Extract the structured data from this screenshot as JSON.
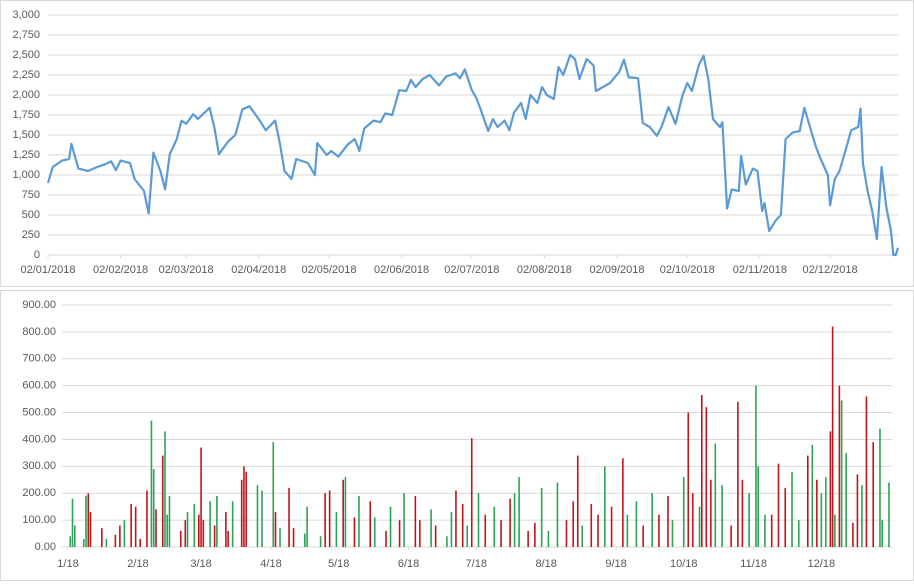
{
  "chart_data": [
    {
      "type": "line",
      "color": "#5b9bd5",
      "grid": true,
      "x": [
        "2018-01-02",
        "2018-01-04",
        "2018-01-08",
        "2018-01-11",
        "2018-01-12",
        "2018-01-15",
        "2018-01-19",
        "2018-01-23",
        "2018-01-26",
        "2018-01-29",
        "2018-01-31",
        "2018-02-02",
        "2018-02-06",
        "2018-02-08",
        "2018-02-12",
        "2018-02-14",
        "2018-02-16",
        "2018-02-19",
        "2018-02-21",
        "2018-02-23",
        "2018-02-26",
        "2018-02-28",
        "2018-03-02",
        "2018-03-05",
        "2018-03-07",
        "2018-03-12",
        "2018-03-14",
        "2018-03-16",
        "2018-03-20",
        "2018-03-23",
        "2018-03-26",
        "2018-03-29",
        "2018-04-02",
        "2018-04-05",
        "2018-04-09",
        "2018-04-11",
        "2018-04-13",
        "2018-04-16",
        "2018-04-18",
        "2018-04-23",
        "2018-04-26",
        "2018-04-27",
        "2018-05-01",
        "2018-05-03",
        "2018-05-06",
        "2018-05-10",
        "2018-05-13",
        "2018-05-15",
        "2018-05-17",
        "2018-05-21",
        "2018-05-24",
        "2018-05-26",
        "2018-05-29",
        "2018-06-01",
        "2018-06-04",
        "2018-06-06",
        "2018-06-08",
        "2018-06-11",
        "2018-06-14",
        "2018-06-18",
        "2018-06-21",
        "2018-06-25",
        "2018-06-27",
        "2018-06-29",
        "2018-07-02",
        "2018-07-04",
        "2018-07-06",
        "2018-07-09",
        "2018-07-11",
        "2018-07-13",
        "2018-07-16",
        "2018-07-18",
        "2018-07-20",
        "2018-07-23",
        "2018-07-25",
        "2018-07-27",
        "2018-07-30",
        "2018-08-01",
        "2018-08-03",
        "2018-08-06",
        "2018-08-08",
        "2018-08-10",
        "2018-08-13",
        "2018-08-15",
        "2018-08-17",
        "2018-08-20",
        "2018-08-23",
        "2018-08-24",
        "2018-08-27",
        "2018-08-30",
        "2018-09-03",
        "2018-09-05",
        "2018-09-07",
        "2018-09-11",
        "2018-09-13",
        "2018-09-16",
        "2018-09-19",
        "2018-09-21",
        "2018-09-24",
        "2018-09-27",
        "2018-09-30",
        "2018-10-02",
        "2018-10-04",
        "2018-10-07",
        "2018-10-09",
        "2018-10-11",
        "2018-10-13",
        "2018-10-16",
        "2018-10-17",
        "2018-10-19",
        "2018-10-21",
        "2018-10-24",
        "2018-10-25",
        "2018-10-27",
        "2018-10-30",
        "2018-11-01",
        "2018-11-03",
        "2018-11-04",
        "2018-11-06",
        "2018-11-09",
        "2018-11-11",
        "2018-11-13",
        "2018-11-16",
        "2018-11-19",
        "2018-11-21",
        "2018-11-24",
        "2018-11-26",
        "2018-11-28",
        "2018-12-01",
        "2018-12-02",
        "2018-12-04",
        "2018-12-06",
        "2018-12-09",
        "2018-12-11",
        "2018-12-14",
        "2018-12-15",
        "2018-12-16",
        "2018-12-18",
        "2018-12-20",
        "2018-12-22",
        "2018-12-24",
        "2018-12-26",
        "2018-12-28",
        "2018-12-29",
        "2018-12-30",
        "2018-12-31"
      ],
      "values": [
        900,
        1100,
        1180,
        1200,
        1390,
        1080,
        1050,
        1100,
        1130,
        1170,
        1060,
        1180,
        1150,
        950,
        800,
        520,
        1280,
        1050,
        820,
        1260,
        1450,
        1680,
        1640,
        1760,
        1700,
        1840,
        1600,
        1260,
        1420,
        1500,
        1820,
        1860,
        1700,
        1560,
        1680,
        1400,
        1050,
        950,
        1200,
        1150,
        1000,
        1400,
        1250,
        1300,
        1230,
        1380,
        1450,
        1300,
        1580,
        1680,
        1660,
        1770,
        1750,
        2060,
        2050,
        2190,
        2100,
        2200,
        2250,
        2120,
        2230,
        2270,
        2210,
        2320,
        2060,
        1960,
        1800,
        1550,
        1700,
        1600,
        1680,
        1560,
        1780,
        1900,
        1700,
        2000,
        1900,
        2100,
        2000,
        1950,
        2350,
        2250,
        2500,
        2450,
        2200,
        2450,
        2370,
        2050,
        2100,
        2150,
        2290,
        2440,
        2220,
        2210,
        1650,
        1600,
        1490,
        1600,
        1850,
        1640,
        2000,
        2150,
        2050,
        2380,
        2490,
        2200,
        1700,
        1600,
        1660,
        580,
        820,
        800,
        1240,
        880,
        1080,
        1050,
        550,
        650,
        300,
        440,
        500,
        1450,
        1530,
        1550,
        1840,
        1540,
        1350,
        1200,
        1000,
        620,
        950,
        1050,
        1350,
        1560,
        1600,
        1830,
        1150,
        800,
        550,
        200,
        1100,
        600,
        300,
        0,
        0,
        90
      ],
      "xlim": [
        "2018-01-02",
        "2018-12-31"
      ],
      "xticks": [
        {
          "value": "2018-01-02",
          "label": "02/01/2018"
        },
        {
          "value": "2018-02-02",
          "label": "02/02/2018"
        },
        {
          "value": "2018-03-02",
          "label": "02/03/2018"
        },
        {
          "value": "2018-04-02",
          "label": "02/04/2018"
        },
        {
          "value": "2018-05-02",
          "label": "02/05/2018"
        },
        {
          "value": "2018-06-02",
          "label": "02/06/2018"
        },
        {
          "value": "2018-07-02",
          "label": "02/07/2018"
        },
        {
          "value": "2018-08-02",
          "label": "02/08/2018"
        },
        {
          "value": "2018-09-02",
          "label": "02/09/2018"
        },
        {
          "value": "2018-10-02",
          "label": "02/10/2018"
        },
        {
          "value": "2018-11-02",
          "label": "02/11/2018"
        },
        {
          "value": "2018-12-02",
          "label": "02/12/2018"
        }
      ],
      "ylim": [
        0,
        3000
      ],
      "yticks": [
        0,
        250,
        500,
        750,
        {
          "value": 1000,
          "label": "1,000"
        },
        {
          "value": 1250,
          "label": "1,250"
        },
        {
          "value": 1500,
          "label": "1,500"
        },
        {
          "value": 1750,
          "label": "1,750"
        },
        {
          "value": 2000,
          "label": "2,000"
        },
        {
          "value": 2250,
          "label": "2,250"
        },
        {
          "value": 2500,
          "label": "2,500"
        },
        {
          "value": 2750,
          "label": "2,750"
        },
        {
          "value": 3000,
          "label": "3,000"
        }
      ]
    },
    {
      "type": "bar",
      "grid": true,
      "x": [
        "2018-01-02",
        "2018-01-03",
        "2018-01-04",
        "2018-01-08",
        "2018-01-09",
        "2018-01-10",
        "2018-01-11",
        "2018-01-16",
        "2018-01-18",
        "2018-01-22",
        "2018-01-24",
        "2018-01-26",
        "2018-01-29",
        "2018-01-31",
        "2018-02-02",
        "2018-02-05",
        "2018-02-07",
        "2018-02-08",
        "2018-02-09",
        "2018-02-12",
        "2018-02-13",
        "2018-02-14",
        "2018-02-15",
        "2018-02-20",
        "2018-02-22",
        "2018-02-23",
        "2018-02-26",
        "2018-02-28",
        "2018-03-01",
        "2018-03-02",
        "2018-03-05",
        "2018-03-07",
        "2018-03-08",
        "2018-03-12",
        "2018-03-13",
        "2018-03-15",
        "2018-03-19",
        "2018-03-20",
        "2018-03-21",
        "2018-03-26",
        "2018-03-28",
        "2018-04-02",
        "2018-04-03",
        "2018-04-05",
        "2018-04-09",
        "2018-04-11",
        "2018-04-16",
        "2018-04-17",
        "2018-04-23",
        "2018-04-25",
        "2018-04-27",
        "2018-04-30",
        "2018-05-03",
        "2018-05-04",
        "2018-05-08",
        "2018-05-10",
        "2018-05-15",
        "2018-05-17",
        "2018-05-22",
        "2018-05-24",
        "2018-05-28",
        "2018-05-30",
        "2018-06-04",
        "2018-06-06",
        "2018-06-11",
        "2018-06-13",
        "2018-06-18",
        "2018-06-20",
        "2018-06-22",
        "2018-06-25",
        "2018-06-27",
        "2018-06-29",
        "2018-07-02",
        "2018-07-05",
        "2018-07-09",
        "2018-07-12",
        "2018-07-16",
        "2018-07-18",
        "2018-07-20",
        "2018-07-24",
        "2018-07-27",
        "2018-07-30",
        "2018-08-02",
        "2018-08-06",
        "2018-08-10",
        "2018-08-13",
        "2018-08-15",
        "2018-08-17",
        "2018-08-21",
        "2018-08-24",
        "2018-08-27",
        "2018-08-30",
        "2018-09-04",
        "2018-09-06",
        "2018-09-10",
        "2018-09-13",
        "2018-09-17",
        "2018-09-20",
        "2018-09-24",
        "2018-09-26",
        "2018-10-01",
        "2018-10-03",
        "2018-10-05",
        "2018-10-08",
        "2018-10-09",
        "2018-10-11",
        "2018-10-13",
        "2018-10-15",
        "2018-10-18",
        "2018-10-22",
        "2018-10-25",
        "2018-10-27",
        "2018-10-30",
        "2018-11-02",
        "2018-11-03",
        "2018-11-06",
        "2018-11-09",
        "2018-11-12",
        "2018-11-15",
        "2018-11-18",
        "2018-11-21",
        "2018-11-25",
        "2018-11-27",
        "2018-11-29",
        "2018-12-01",
        "2018-12-03",
        "2018-12-05",
        "2018-12-06",
        "2018-12-07",
        "2018-12-09",
        "2018-12-10",
        "2018-12-12",
        "2018-12-15",
        "2018-12-17",
        "2018-12-19",
        "2018-12-21",
        "2018-12-24",
        "2018-12-27",
        "2018-12-28",
        "2018-12-31"
      ],
      "values": [
        40,
        180,
        80,
        30,
        190,
        200,
        130,
        70,
        30,
        45,
        80,
        100,
        160,
        150,
        30,
        210,
        470,
        290,
        140,
        340,
        430,
        120,
        190,
        60,
        100,
        130,
        160,
        120,
        370,
        100,
        170,
        80,
        190,
        130,
        60,
        170,
        250,
        300,
        280,
        230,
        210,
        390,
        130,
        70,
        220,
        70,
        50,
        150,
        40,
        200,
        210,
        130,
        250,
        260,
        110,
        190,
        170,
        110,
        60,
        150,
        100,
        200,
        190,
        100,
        140,
        80,
        40,
        130,
        210,
        160,
        80,
        405,
        200,
        120,
        150,
        100,
        180,
        200,
        260,
        60,
        90,
        220,
        60,
        240,
        100,
        170,
        340,
        80,
        160,
        120,
        300,
        150,
        330,
        120,
        170,
        80,
        200,
        120,
        190,
        100,
        260,
        500,
        200,
        150,
        565,
        520,
        250,
        385,
        230,
        80,
        540,
        250,
        200,
        600,
        300,
        120,
        120,
        310,
        220,
        280,
        100,
        340,
        380,
        250,
        200,
        260,
        430,
        820,
        120,
        600,
        545,
        350,
        90,
        270,
        230,
        560,
        390,
        440,
        100,
        240
      ],
      "colors": [
        "#2ea357",
        "#2ea357",
        "#2ea357",
        "#2ea357",
        "#2ea357",
        "#c0161b",
        "#c0161b",
        "#c0161b",
        "#2ea357",
        "#c0161b",
        "#c0161b",
        "#2ea357",
        "#c0161b",
        "#c0161b",
        "#c0161b",
        "#c0161b",
        "#2ea357",
        "#2ea357",
        "#c0161b",
        "#c0161b",
        "#2ea357",
        "#2ea357",
        "#2ea357",
        "#c0161b",
        "#c0161b",
        "#2ea357",
        "#2ea357",
        "#c0161b",
        "#c0161b",
        "#c0161b",
        "#2ea357",
        "#c0161b",
        "#2ea357",
        "#c0161b",
        "#c0161b",
        "#2ea357",
        "#c0161b",
        "#c0161b",
        "#c0161b",
        "#2ea357",
        "#2ea357",
        "#2ea357",
        "#c0161b",
        "#2ea357",
        "#c0161b",
        "#c0161b",
        "#2ea357",
        "#2ea357",
        "#2ea357",
        "#c0161b",
        "#c0161b",
        "#2ea357",
        "#c0161b",
        "#2ea357",
        "#c0161b",
        "#2ea357",
        "#c0161b",
        "#2ea357",
        "#c0161b",
        "#2ea357",
        "#c0161b",
        "#2ea357",
        "#c0161b",
        "#c0161b",
        "#2ea357",
        "#c0161b",
        "#2ea357",
        "#2ea357",
        "#c0161b",
        "#c0161b",
        "#2ea357",
        "#c0161b",
        "#2ea357",
        "#c0161b",
        "#2ea357",
        "#c0161b",
        "#c0161b",
        "#2ea357",
        "#2ea357",
        "#c0161b",
        "#c0161b",
        "#2ea357",
        "#2ea357",
        "#2ea357",
        "#c0161b",
        "#c0161b",
        "#c0161b",
        "#2ea357",
        "#c0161b",
        "#c0161b",
        "#2ea357",
        "#c0161b",
        "#c0161b",
        "#2ea357",
        "#2ea357",
        "#c0161b",
        "#2ea357",
        "#c0161b",
        "#c0161b",
        "#2ea357",
        "#2ea357",
        "#c0161b",
        "#c0161b",
        "#2ea357",
        "#c0161b",
        "#c0161b",
        "#c0161b",
        "#2ea357",
        "#2ea357",
        "#c0161b",
        "#c0161b",
        "#c0161b",
        "#2ea357",
        "#2ea357",
        "#2ea357",
        "#2ea357",
        "#c0161b",
        "#c0161b",
        "#c0161b",
        "#2ea357",
        "#2ea357",
        "#c0161b",
        "#2ea357",
        "#c0161b",
        "#2ea357",
        "#2ea357",
        "#c0161b",
        "#c0161b",
        "#2ea357",
        "#c0161b",
        "#2ea357",
        "#2ea357",
        "#c0161b",
        "#c0161b",
        "#2ea357",
        "#c0161b",
        "#c0161b",
        "#2ea357",
        "#2ea357",
        "#2ea357"
      ],
      "xlim": [
        "2018-01-01",
        "2018-12-31"
      ],
      "xticks": [
        {
          "value": "2018-01-01",
          "label": "1/18"
        },
        {
          "value": "2018-02-01",
          "label": "2/18"
        },
        {
          "value": "2018-03-01",
          "label": "3/18"
        },
        {
          "value": "2018-04-01",
          "label": "4/18"
        },
        {
          "value": "2018-05-01",
          "label": "5/18"
        },
        {
          "value": "2018-06-01",
          "label": "6/18"
        },
        {
          "value": "2018-07-01",
          "label": "7/18"
        },
        {
          "value": "2018-08-01",
          "label": "8/18"
        },
        {
          "value": "2018-09-01",
          "label": "9/18"
        },
        {
          "value": "2018-10-01",
          "label": "10/18"
        },
        {
          "value": "2018-11-01",
          "label": "11/18"
        },
        {
          "value": "2018-12-01",
          "label": "12/18"
        }
      ],
      "ylim": [
        0,
        900
      ],
      "yticks": [
        {
          "value": 0,
          "label": "0.00"
        },
        {
          "value": 100,
          "label": "100.00"
        },
        {
          "value": 200,
          "label": "200.00"
        },
        {
          "value": 300,
          "label": "300.00"
        },
        {
          "value": 400,
          "label": "400.00"
        },
        {
          "value": 500,
          "label": "500.00"
        },
        {
          "value": 600,
          "label": "600.00"
        },
        {
          "value": 700,
          "label": "700.00"
        },
        {
          "value": 800,
          "label": "800.00"
        },
        {
          "value": 900,
          "label": "900.00"
        }
      ]
    }
  ]
}
